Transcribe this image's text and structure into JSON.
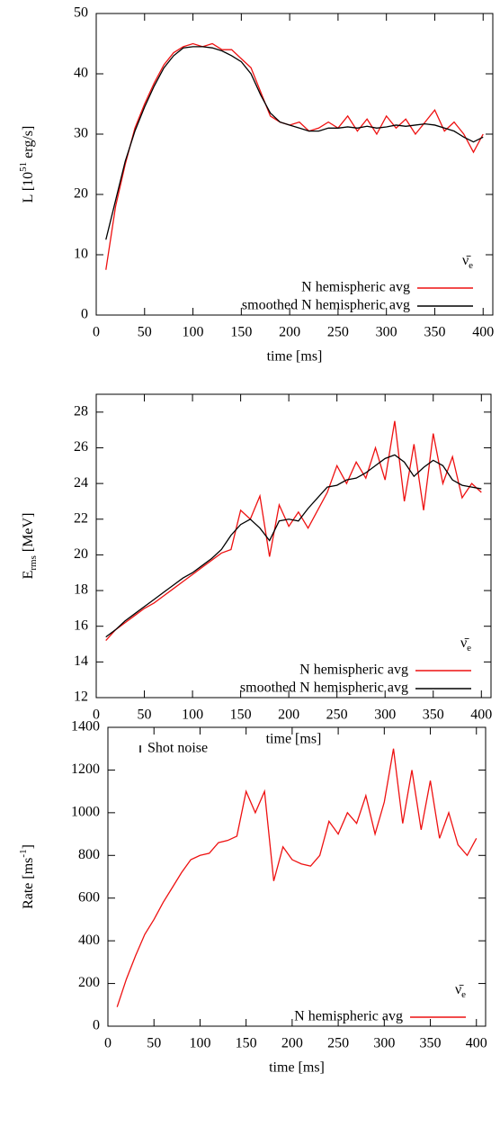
{
  "chart_data": [
    {
      "type": "line",
      "x": [
        10,
        20,
        30,
        40,
        50,
        60,
        70,
        80,
        90,
        100,
        110,
        120,
        130,
        140,
        150,
        160,
        170,
        180,
        190,
        200,
        210,
        220,
        230,
        240,
        250,
        260,
        270,
        280,
        290,
        300,
        310,
        320,
        330,
        340,
        350,
        360,
        370,
        380,
        390,
        400
      ],
      "series": [
        {
          "name": "N hemispheric avg",
          "color": "#ee1111",
          "values": [
            7.5,
            18,
            25,
            31,
            35,
            38.5,
            41.5,
            43.5,
            44.5,
            45,
            44.5,
            45,
            44,
            44,
            42.5,
            41,
            37,
            33,
            32,
            31.5,
            32,
            30.5,
            31,
            32,
            31,
            33,
            30.5,
            32.5,
            30,
            33,
            31,
            32.5,
            30,
            32,
            34,
            30.5,
            32,
            30,
            27,
            30
          ]
        },
        {
          "name": "smoothed N hemispheric avg",
          "color": "#000000",
          "values": [
            12.5,
            19,
            25.5,
            30.5,
            34.5,
            38,
            41,
            43,
            44.3,
            44.5,
            44.5,
            44.3,
            43.8,
            43,
            42,
            40,
            36.5,
            33.5,
            32,
            31.5,
            31,
            30.5,
            30.5,
            31,
            31,
            31.2,
            31,
            31.3,
            31,
            31.2,
            31.5,
            31.3,
            31.5,
            31.7,
            31.5,
            31,
            30.5,
            29.5,
            28.7,
            29.5
          ]
        }
      ],
      "xlim": [
        0,
        410
      ],
      "ylim": [
        0,
        50
      ],
      "xticks": [
        0,
        50,
        100,
        150,
        200,
        250,
        300,
        350,
        400
      ],
      "yticks": [
        0,
        10,
        20,
        30,
        40,
        50
      ],
      "xlabel": "time [ms]",
      "ylabel": [
        "L [10",
        "51",
        " erg/s]"
      ],
      "legend_title": [
        "ν̄",
        "e"
      ],
      "legend": "bottom right"
    },
    {
      "type": "line",
      "x": [
        10,
        20,
        30,
        40,
        50,
        60,
        70,
        80,
        90,
        100,
        110,
        120,
        130,
        140,
        150,
        160,
        170,
        180,
        190,
        200,
        210,
        220,
        230,
        240,
        250,
        260,
        270,
        280,
        290,
        300,
        310,
        320,
        330,
        340,
        350,
        360,
        370,
        380,
        390,
        400
      ],
      "series": [
        {
          "name": "N hemispheric avg",
          "color": "#ee1111",
          "values": [
            15.2,
            15.8,
            16.2,
            16.6,
            17,
            17.3,
            17.7,
            18.1,
            18.5,
            18.9,
            19.3,
            19.7,
            20.1,
            20.3,
            22.5,
            22,
            23.3,
            19.9,
            22.8,
            21.6,
            22.4,
            21.5,
            22.5,
            23.5,
            25,
            24,
            25.2,
            24.3,
            26,
            24.2,
            27.5,
            23,
            26.2,
            22.5,
            26.8,
            24,
            25.5,
            23.2,
            24,
            23.5
          ]
        },
        {
          "name": "smoothed N hemispheric avg",
          "color": "#000000",
          "values": [
            15.4,
            15.8,
            16.3,
            16.7,
            17.1,
            17.5,
            17.9,
            18.3,
            18.7,
            19,
            19.4,
            19.8,
            20.3,
            21.1,
            21.7,
            22,
            21.5,
            20.8,
            21.9,
            22,
            21.9,
            22.6,
            23.2,
            23.8,
            23.9,
            24.2,
            24.3,
            24.6,
            25,
            25.4,
            25.6,
            25.2,
            24.4,
            24.9,
            25.3,
            25,
            24.2,
            23.9,
            23.8,
            23.7
          ]
        }
      ],
      "xlim": [
        0,
        410
      ],
      "ylim": [
        12,
        29
      ],
      "xticks": [
        0,
        50,
        100,
        150,
        200,
        250,
        300,
        350,
        400
      ],
      "yticks": [
        12,
        14,
        16,
        18,
        20,
        22,
        24,
        26,
        28
      ],
      "xlabel": "time [ms]",
      "ylabel": [
        "E",
        "rms",
        " [MeV]"
      ],
      "legend_title": [
        "ν̄",
        "e"
      ],
      "legend": "bottom right"
    },
    {
      "type": "line",
      "x": [
        10,
        20,
        30,
        40,
        50,
        60,
        70,
        80,
        90,
        100,
        110,
        120,
        130,
        140,
        150,
        160,
        170,
        180,
        190,
        200,
        210,
        220,
        230,
        240,
        250,
        260,
        270,
        280,
        290,
        300,
        310,
        320,
        330,
        340,
        350,
        360,
        370,
        380,
        390,
        400
      ],
      "series": [
        {
          "name": "N hemispheric avg",
          "color": "#ee1111",
          "values": [
            90,
            220,
            330,
            430,
            500,
            580,
            650,
            720,
            780,
            800,
            810,
            860,
            870,
            890,
            1100,
            1000,
            1100,
            680,
            840,
            780,
            760,
            750,
            800,
            960,
            900,
            1000,
            950,
            1080,
            900,
            1050,
            1300,
            950,
            1200,
            920,
            1150,
            880,
            1000,
            850,
            800,
            880
          ]
        }
      ],
      "xlim": [
        0,
        410
      ],
      "ylim": [
        0,
        1400
      ],
      "xticks": [
        0,
        50,
        100,
        150,
        200,
        250,
        300,
        350,
        400
      ],
      "yticks": [
        0,
        200,
        400,
        600,
        800,
        1000,
        1200,
        1400
      ],
      "xlabel": "time [ms]",
      "ylabel": [
        "Rate [ms",
        "-1",
        "]"
      ],
      "legend_title": [
        "ν̄",
        "e"
      ],
      "legend": "bottom right",
      "annotation": "Shot noise"
    }
  ]
}
